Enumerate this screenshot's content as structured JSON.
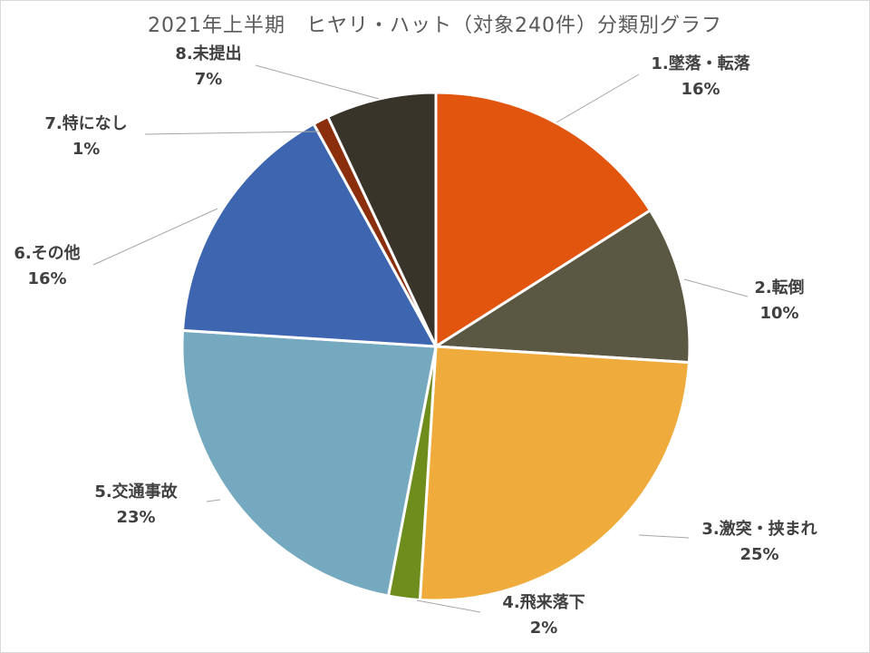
{
  "chart_data": {
    "type": "pie",
    "title": "2021年上半期　ヒヤリ・ハット（対象240件）分類別グラフ",
    "slices": [
      {
        "label": "1.墜落・転落",
        "percent_label": "16%",
        "value": 16,
        "color": "#e2550f"
      },
      {
        "label": "2.転倒",
        "percent_label": "10%",
        "value": 10,
        "color": "#5a5743"
      },
      {
        "label": "3.激突・挟まれ",
        "percent_label": "25%",
        "value": 25,
        "color": "#efac3c"
      },
      {
        "label": "4.飛来落下",
        "percent_label": "2%",
        "value": 2,
        "color": "#6e8d1c"
      },
      {
        "label": "5.交通事故",
        "percent_label": "23%",
        "value": 23,
        "color": "#74a9bf"
      },
      {
        "label": "6.その他",
        "percent_label": "16%",
        "value": 16,
        "color": "#3e65b0"
      },
      {
        "label": "7.特になし",
        "percent_label": "1%",
        "value": 1,
        "color": "#8a2e0c"
      },
      {
        "label": "8.未提出",
        "percent_label": "7%",
        "value": 7,
        "color": "#38342a"
      }
    ],
    "legend": "none",
    "data_labels": "outside-with-leader-lines"
  }
}
